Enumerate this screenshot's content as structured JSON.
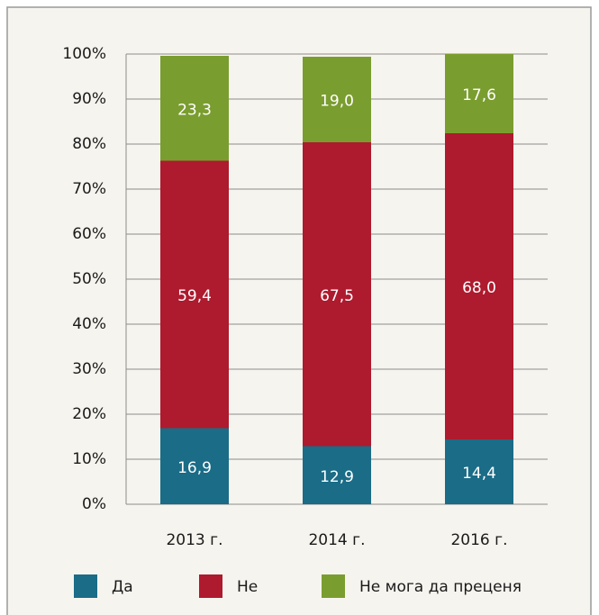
{
  "chart_data": {
    "type": "stacked_bar",
    "categories": [
      "2013 г.",
      "2014 г.",
      "2016 г."
    ],
    "series": [
      {
        "name": "Да",
        "color": "#1a6c87",
        "values": [
          16.9,
          12.9,
          14.4
        ],
        "value_labels": [
          "16,9",
          "12,9",
          "14,4"
        ]
      },
      {
        "name": "Не",
        "color": "#ae1a2e",
        "values": [
          59.4,
          67.5,
          68.0
        ],
        "value_labels": [
          "59,4",
          "67,5",
          "68,0"
        ]
      },
      {
        "name": "Не мога да преценя",
        "color": "#7a9d2f",
        "values": [
          23.3,
          19.0,
          17.6
        ],
        "value_labels": [
          "23,3",
          "19,0",
          "17,6"
        ]
      }
    ],
    "ylim": [
      0,
      100
    ],
    "yticks": [
      {
        "value": 0,
        "label": "0%"
      },
      {
        "value": 10,
        "label": "10%"
      },
      {
        "value": 20,
        "label": "20%"
      },
      {
        "value": 30,
        "label": "30%"
      },
      {
        "value": 40,
        "label": "40%"
      },
      {
        "value": 50,
        "label": "50%"
      },
      {
        "value": 60,
        "label": "60%"
      },
      {
        "value": 70,
        "label": "70%"
      },
      {
        "value": 80,
        "label": "80%"
      },
      {
        "value": 90,
        "label": "90%"
      },
      {
        "value": 100,
        "label": "100%"
      }
    ],
    "grid": true,
    "legend": "bottom"
  }
}
